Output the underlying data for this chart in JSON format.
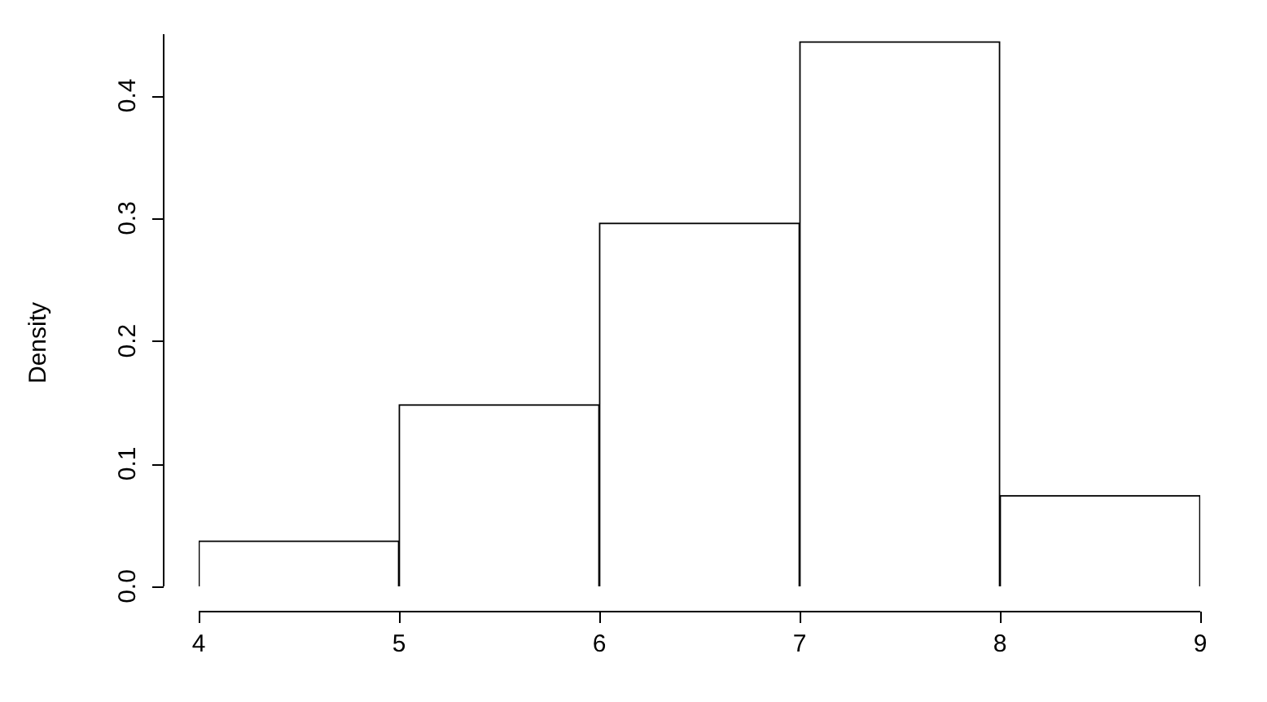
{
  "chart_data": {
    "type": "histogram",
    "ylabel": "Density",
    "bins": [
      4,
      5,
      6,
      7,
      8,
      9
    ],
    "values": [
      0.037,
      0.148,
      0.296,
      0.444,
      0.074
    ],
    "color": "#ffffff",
    "xlim": [
      4,
      9
    ],
    "ylim": [
      0,
      0.45
    ],
    "xticks": [
      4,
      5,
      6,
      7,
      8,
      9
    ],
    "yticks": [
      {
        "value": 0,
        "label": "0.0"
      },
      {
        "value": 0.1,
        "label": "0.1"
      },
      {
        "value": 0.2,
        "label": "0.2"
      },
      {
        "value": 0.3,
        "label": "0.3"
      },
      {
        "value": 0.4,
        "label": "0.4"
      }
    ],
    "grid": false,
    "legend": false
  }
}
